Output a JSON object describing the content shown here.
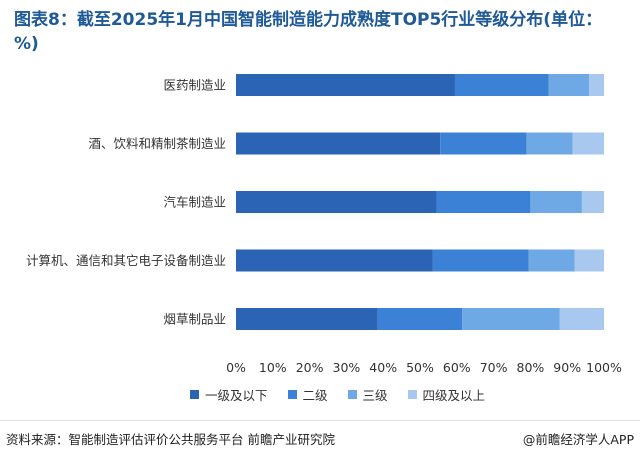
{
  "title": "图表8：截至2025年1月中国智能制造能力成熟度TOP5行业等级分布(单位：%)",
  "colors": {
    "title": "#1f5a96",
    "series": [
      "#2b63b5",
      "#3b82d6",
      "#6ea9e6",
      "#a8c8f0"
    ]
  },
  "chart_data": {
    "type": "bar",
    "orientation": "horizontal",
    "stacked": true,
    "categories": [
      "医药制造业",
      "酒、饮料和精制茶制造业",
      "汽车制造业",
      "计算机、通信和其它电子设备制造业",
      "烟草制品业"
    ],
    "series": [
      {
        "name": "一级及以下",
        "values": [
          59.5,
          55.5,
          54.5,
          53.5,
          38.5
        ]
      },
      {
        "name": "二级",
        "values": [
          25.5,
          23.5,
          25.5,
          26.0,
          23.0
        ]
      },
      {
        "name": "三级",
        "values": [
          11.0,
          12.5,
          14.0,
          12.5,
          26.5
        ]
      },
      {
        "name": "四级及以上",
        "values": [
          4.0,
          8.5,
          6.0,
          8.0,
          12.0
        ]
      }
    ],
    "xlim": [
      0,
      100
    ],
    "x_ticks": [
      "0%",
      "10%",
      "20%",
      "30%",
      "40%",
      "50%",
      "60%",
      "70%",
      "80%",
      "90%",
      "100%"
    ],
    "legend_position": "bottom",
    "grid": false
  },
  "footer": {
    "source": "资料来源：智能制造评估评价公共服务平台 前瞻产业研究院",
    "brand": "@前瞻经济学人APP"
  }
}
